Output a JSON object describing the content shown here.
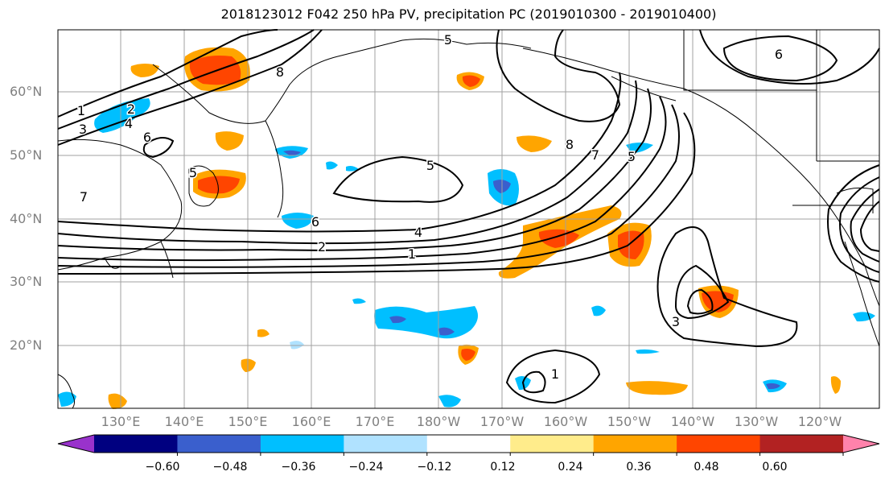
{
  "title": "2018123012 F042 250 hPa PV, precipitation PC (2019010300 - 2019010400)",
  "lat_labels": [
    "60°N",
    "50°N",
    "40°N",
    "30°N",
    "20°N"
  ],
  "lon_labels": [
    "130°E",
    "140°E",
    "150°E",
    "160°E",
    "170°E",
    "180°W",
    "170°W",
    "160°W",
    "150°W",
    "140°W",
    "130°W",
    "120°W"
  ],
  "colorbar": {
    "colors": [
      "#9932cc",
      "#000080",
      "#3a5fcd",
      "#00bfff",
      "#b0e2ff",
      "#ffffff",
      "#ffec8b",
      "#ffa500",
      "#ff4500",
      "#b22222",
      "#ff82ab"
    ],
    "tick_labels": [
      "−0.60",
      "−0.48",
      "−0.36",
      "−0.24",
      "−0.12",
      "0.12",
      "0.24",
      "0.36",
      "0.48",
      "0.60"
    ]
  },
  "contour_labels": [
    "1",
    "2",
    "3",
    "4",
    "5",
    "6",
    "7",
    "8",
    "5",
    "6",
    "4",
    "2",
    "1",
    "5",
    "7",
    "8",
    "6",
    "5",
    "3",
    "1"
  ],
  "colors": {
    "grid": "#a0a0a0",
    "contour": "#000000",
    "coast": "#000000",
    "label": "#808080"
  }
}
